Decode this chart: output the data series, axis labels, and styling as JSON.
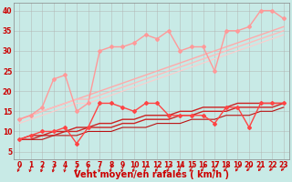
{
  "x": [
    0,
    1,
    2,
    3,
    4,
    5,
    6,
    7,
    8,
    9,
    10,
    11,
    12,
    13,
    14,
    15,
    16,
    17,
    18,
    19,
    20,
    21,
    22,
    23
  ],
  "background_color": "#c8eae6",
  "grid_color": "#b0b0b0",
  "xlabel": "Vent moyen/en rafales ( km/h )",
  "xlabel_color": "#cc0000",
  "xlabel_fontsize": 7,
  "tick_color": "#cc0000",
  "tick_fontsize": 5.5,
  "ylim": [
    3,
    42
  ],
  "xlim": [
    -0.5,
    23.5
  ],
  "yticks": [
    5,
    10,
    15,
    20,
    25,
    30,
    35,
    40
  ],
  "lines": [
    {
      "y": [
        13,
        14,
        16,
        23,
        24,
        15,
        17,
        30,
        31,
        31,
        32,
        34,
        33,
        35,
        30,
        31,
        31,
        25,
        35,
        35,
        36,
        40,
        40,
        38
      ],
      "color": "#ff9999",
      "linewidth": 1.0,
      "marker": "D",
      "markersize": 2.0,
      "zorder": 6
    },
    {
      "y": [
        13,
        14,
        15,
        16,
        17,
        18,
        19,
        20,
        21,
        22,
        23,
        24,
        25,
        26,
        27,
        28,
        29,
        30,
        31,
        32,
        33,
        34,
        35,
        36
      ],
      "color": "#ffaaaa",
      "linewidth": 1.0,
      "marker": null,
      "markersize": 0,
      "zorder": 3
    },
    {
      "y": [
        13,
        14,
        15,
        16,
        17,
        18,
        18,
        19,
        20,
        21,
        22,
        23,
        24,
        25,
        26,
        27,
        28,
        29,
        30,
        31,
        32,
        33,
        34,
        35
      ],
      "color": "#ffbbbb",
      "linewidth": 1.0,
      "marker": null,
      "markersize": 0,
      "zorder": 3
    },
    {
      "y": [
        12,
        13,
        14,
        15,
        16,
        17,
        17,
        18,
        19,
        20,
        21,
        22,
        23,
        24,
        25,
        26,
        27,
        28,
        29,
        30,
        31,
        32,
        33,
        34
      ],
      "color": "#ffcccc",
      "linewidth": 0.8,
      "marker": null,
      "markersize": 0,
      "zorder": 2
    },
    {
      "y": [
        8,
        9,
        10,
        10,
        11,
        7,
        11,
        17,
        17,
        16,
        15,
        17,
        17,
        14,
        14,
        14,
        14,
        12,
        16,
        16,
        11,
        17,
        17,
        17
      ],
      "color": "#ff4444",
      "linewidth": 1.0,
      "marker": "D",
      "markersize": 2.0,
      "zorder": 7
    },
    {
      "y": [
        8,
        9,
        9,
        10,
        10,
        11,
        11,
        12,
        12,
        13,
        13,
        14,
        14,
        14,
        15,
        15,
        16,
        16,
        16,
        17,
        17,
        17,
        17,
        17
      ],
      "color": "#cc2222",
      "linewidth": 1.0,
      "marker": null,
      "markersize": 0,
      "zorder": 4
    },
    {
      "y": [
        8,
        8,
        9,
        9,
        10,
        10,
        11,
        11,
        11,
        12,
        12,
        13,
        13,
        13,
        14,
        14,
        15,
        15,
        15,
        16,
        16,
        16,
        16,
        17
      ],
      "color": "#cc2222",
      "linewidth": 1.0,
      "marker": null,
      "markersize": 0,
      "zorder": 4
    },
    {
      "y": [
        8,
        8,
        8,
        9,
        9,
        9,
        10,
        10,
        10,
        11,
        11,
        11,
        12,
        12,
        12,
        13,
        13,
        13,
        14,
        14,
        14,
        15,
        15,
        16
      ],
      "color": "#bb1111",
      "linewidth": 0.8,
      "marker": null,
      "markersize": 0,
      "zorder": 3
    }
  ],
  "arrow_color": "#cc0000",
  "arrow_angles": [
    210,
    200,
    200,
    195,
    195,
    195,
    190,
    195,
    200,
    200,
    205,
    205,
    210,
    210,
    210,
    215,
    215,
    215,
    220,
    220,
    225,
    225,
    230,
    230
  ]
}
